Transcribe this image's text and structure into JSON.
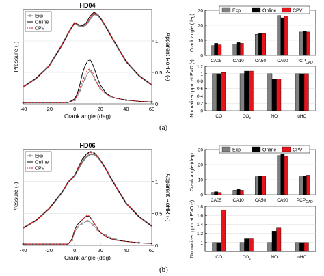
{
  "captions": [
    "(a)",
    "(b)"
  ],
  "colors": {
    "exp": "#808080",
    "online": "#000000",
    "cpv": "#e8141c",
    "grid": "#d9d9d9"
  },
  "chart_data": [
    {
      "id": "HD04-pressure-rohr",
      "type": "line",
      "title": "HD04",
      "xlabel": "Crank angle (deg)",
      "ylabel": "Pressure (-)",
      "y2label": "Apparent RoHR (-)",
      "xlim": [
        -40,
        60
      ],
      "xticks": [
        -40,
        -20,
        0,
        20,
        40,
        60
      ],
      "ylim": [
        0,
        1
      ],
      "y2lim": [
        0,
        1.5
      ],
      "y2ticks": [
        0,
        0.5,
        1
      ],
      "legend": [
        "Exp",
        "Online",
        "CPV"
      ],
      "legend_position": "top-left",
      "pressure": {
        "x": [
          -40,
          -30,
          -20,
          -10,
          -5,
          0,
          3,
          6,
          9,
          12,
          15,
          18,
          21,
          25,
          30,
          40,
          50,
          60
        ],
        "series": [
          {
            "name": "Exp",
            "values": [
              0.18,
              0.27,
              0.4,
              0.62,
              0.75,
              0.86,
              0.83,
              0.82,
              0.84,
              0.9,
              0.95,
              0.94,
              0.89,
              0.8,
              0.68,
              0.45,
              0.3,
              0.2
            ]
          },
          {
            "name": "Online",
            "values": [
              0.18,
              0.27,
              0.4,
              0.62,
              0.75,
              0.86,
              0.84,
              0.83,
              0.86,
              0.93,
              0.97,
              0.95,
              0.89,
              0.8,
              0.68,
              0.45,
              0.3,
              0.2
            ]
          },
          {
            "name": "CPV",
            "values": [
              0.18,
              0.27,
              0.4,
              0.62,
              0.75,
              0.86,
              0.84,
              0.83,
              0.85,
              0.92,
              0.96,
              0.95,
              0.89,
              0.8,
              0.68,
              0.45,
              0.3,
              0.2
            ]
          }
        ]
      },
      "rohr": {
        "x": [
          -40,
          -5,
          0,
          2,
          4,
          6,
          8,
          10,
          12,
          14,
          16,
          18,
          20,
          24,
          28,
          32,
          40,
          50,
          60
        ],
        "series": [
          {
            "name": "Exp",
            "values": [
              0.02,
              0.02,
              0.06,
              0.12,
              0.2,
              0.3,
              0.4,
              0.48,
              0.52,
              0.46,
              0.38,
              0.3,
              0.24,
              0.16,
              0.12,
              0.09,
              0.06,
              0.04,
              0.03
            ]
          },
          {
            "name": "Online",
            "values": [
              0.02,
              0.02,
              0.08,
              0.16,
              0.3,
              0.48,
              0.6,
              0.68,
              0.7,
              0.63,
              0.52,
              0.4,
              0.3,
              0.18,
              0.12,
              0.09,
              0.06,
              0.04,
              0.03
            ]
          },
          {
            "name": "CPV",
            "values": [
              0.02,
              0.02,
              0.06,
              0.14,
              0.24,
              0.36,
              0.46,
              0.54,
              0.56,
              0.5,
              0.4,
              0.32,
              0.24,
              0.16,
              0.12,
              0.09,
              0.06,
              0.04,
              0.03
            ]
          }
        ]
      }
    },
    {
      "id": "HD04-crank-angles",
      "type": "bar",
      "ylabel": "Crank angle (deg)",
      "ylim": [
        0,
        30
      ],
      "yticks": [
        0,
        10,
        20,
        30
      ],
      "categories": [
        "CA05",
        "CA10",
        "CA50",
        "CA90",
        "PCP"
      ],
      "category_subscript": {
        "PCP": "CAD"
      },
      "legend": [
        "Exp",
        "Online",
        "CPV"
      ],
      "legend_position": "top-center",
      "series": [
        {
          "name": "Exp",
          "values": [
            6.5,
            7.5,
            14,
            26.5,
            15.5
          ]
        },
        {
          "name": "Online",
          "values": [
            8,
            8.5,
            14.5,
            25,
            16
          ]
        },
        {
          "name": "CPV",
          "values": [
            7,
            8,
            14.5,
            26,
            15.5
          ]
        }
      ]
    },
    {
      "id": "HD04-emissions",
      "type": "bar",
      "ylabel": "Normalized ppm at EVO (-)",
      "ylim": [
        0,
        1.2
      ],
      "yticks": [
        0,
        0.2,
        0.4,
        0.6,
        0.8,
        1,
        1.2
      ],
      "categories": [
        "CO",
        "CO2",
        "NO",
        "uHC"
      ],
      "category_subscript": {
        "CO2": "2"
      },
      "series": [
        {
          "name": "Exp",
          "values": [
            1,
            1,
            1,
            1
          ]
        },
        {
          "name": "Online",
          "values": [
            1,
            1.07,
            0.86,
            1
          ]
        },
        {
          "name": "CPV",
          "values": [
            1.03,
            1.07,
            0.86,
            1
          ]
        }
      ]
    },
    {
      "id": "HD06-pressure-rohr",
      "type": "line",
      "title": "HD06",
      "xlabel": "Crank angle (deg)",
      "ylabel": "Pressure (-)",
      "y2label": "Apparent RoHR (-)",
      "xlim": [
        -40,
        60
      ],
      "xticks": [
        -40,
        -20,
        0,
        20,
        40,
        60
      ],
      "ylim": [
        0,
        1
      ],
      "y2lim": [
        0,
        1.5
      ],
      "y2ticks": [
        0,
        0.5,
        1
      ],
      "legend": [
        "Exp",
        "Online",
        "CPV"
      ],
      "legend_position": "top-left",
      "pressure": {
        "x": [
          -40,
          -30,
          -20,
          -10,
          -5,
          -2,
          0,
          3,
          6,
          9,
          12,
          15,
          18,
          21,
          25,
          30,
          40,
          50,
          60
        ],
        "series": [
          {
            "name": "Exp",
            "values": [
              0.18,
              0.26,
              0.38,
              0.55,
              0.66,
              0.7,
              0.73,
              0.8,
              0.87,
              0.92,
              0.95,
              0.95,
              0.92,
              0.87,
              0.78,
              0.66,
              0.44,
              0.3,
              0.2
            ]
          },
          {
            "name": "Online",
            "values": [
              0.18,
              0.26,
              0.38,
              0.55,
              0.66,
              0.7,
              0.73,
              0.82,
              0.9,
              0.95,
              0.98,
              0.97,
              0.93,
              0.87,
              0.78,
              0.66,
              0.44,
              0.3,
              0.2
            ]
          },
          {
            "name": "CPV",
            "values": [
              0.18,
              0.26,
              0.38,
              0.55,
              0.66,
              0.7,
              0.73,
              0.81,
              0.89,
              0.94,
              0.97,
              0.96,
              0.93,
              0.87,
              0.78,
              0.66,
              0.44,
              0.3,
              0.2
            ]
          }
        ]
      },
      "rohr": {
        "x": [
          -40,
          -5,
          -2,
          0,
          2,
          4,
          6,
          8,
          10,
          12,
          14,
          16,
          18,
          20,
          24,
          28,
          32,
          40,
          50,
          60
        ],
        "series": [
          {
            "name": "Exp",
            "values": [
              0.02,
              0.02,
              0.08,
              0.2,
              0.28,
              0.32,
              0.34,
              0.36,
              0.38,
              0.36,
              0.32,
              0.28,
              0.24,
              0.2,
              0.16,
              0.12,
              0.09,
              0.06,
              0.04,
              0.03
            ]
          },
          {
            "name": "Online",
            "values": [
              0.02,
              0.02,
              0.1,
              0.24,
              0.32,
              0.36,
              0.4,
              0.44,
              0.46,
              0.44,
              0.38,
              0.32,
              0.26,
              0.2,
              0.14,
              0.1,
              0.08,
              0.06,
              0.04,
              0.03
            ]
          },
          {
            "name": "CPV",
            "values": [
              0.02,
              0.02,
              0.1,
              0.24,
              0.32,
              0.36,
              0.4,
              0.44,
              0.48,
              0.45,
              0.38,
              0.32,
              0.26,
              0.2,
              0.14,
              0.1,
              0.08,
              0.06,
              0.04,
              0.03
            ]
          }
        ]
      }
    },
    {
      "id": "HD06-crank-angles",
      "type": "bar",
      "ylabel": "Crank angle (deg)",
      "ylim": [
        0,
        30
      ],
      "yticks": [
        0,
        10,
        20,
        30
      ],
      "categories": [
        "CA05",
        "CA10",
        "CA50",
        "CA90",
        "PCP"
      ],
      "category_subscript": {
        "PCP": "CAD"
      },
      "legend": [
        "Exp",
        "Online",
        "CPV"
      ],
      "legend_position": "top-center",
      "series": [
        {
          "name": "Exp",
          "values": [
            1.5,
            3,
            12,
            26,
            12
          ]
        },
        {
          "name": "Online",
          "values": [
            2,
            3.5,
            12.5,
            27,
            12.5
          ]
        },
        {
          "name": "CPV",
          "values": [
            1.5,
            3,
            12.5,
            25.5,
            13
          ]
        }
      ]
    },
    {
      "id": "HD06-emissions",
      "type": "bar",
      "ylabel": "Normalized ppm at EVO (-)",
      "ylim": [
        0.8,
        1.8
      ],
      "yticks": [
        1,
        1.2,
        1.4,
        1.6,
        1.8
      ],
      "categories": [
        "CO",
        "CO2",
        "NO",
        "uHC"
      ],
      "category_subscript": {
        "CO2": "2"
      },
      "series": [
        {
          "name": "Exp",
          "values": [
            1,
            1,
            1,
            1
          ]
        },
        {
          "name": "Online",
          "values": [
            1,
            1.08,
            1.25,
            1
          ]
        },
        {
          "name": "CPV",
          "values": [
            1.72,
            1.08,
            1.32,
            1
          ]
        }
      ]
    }
  ]
}
